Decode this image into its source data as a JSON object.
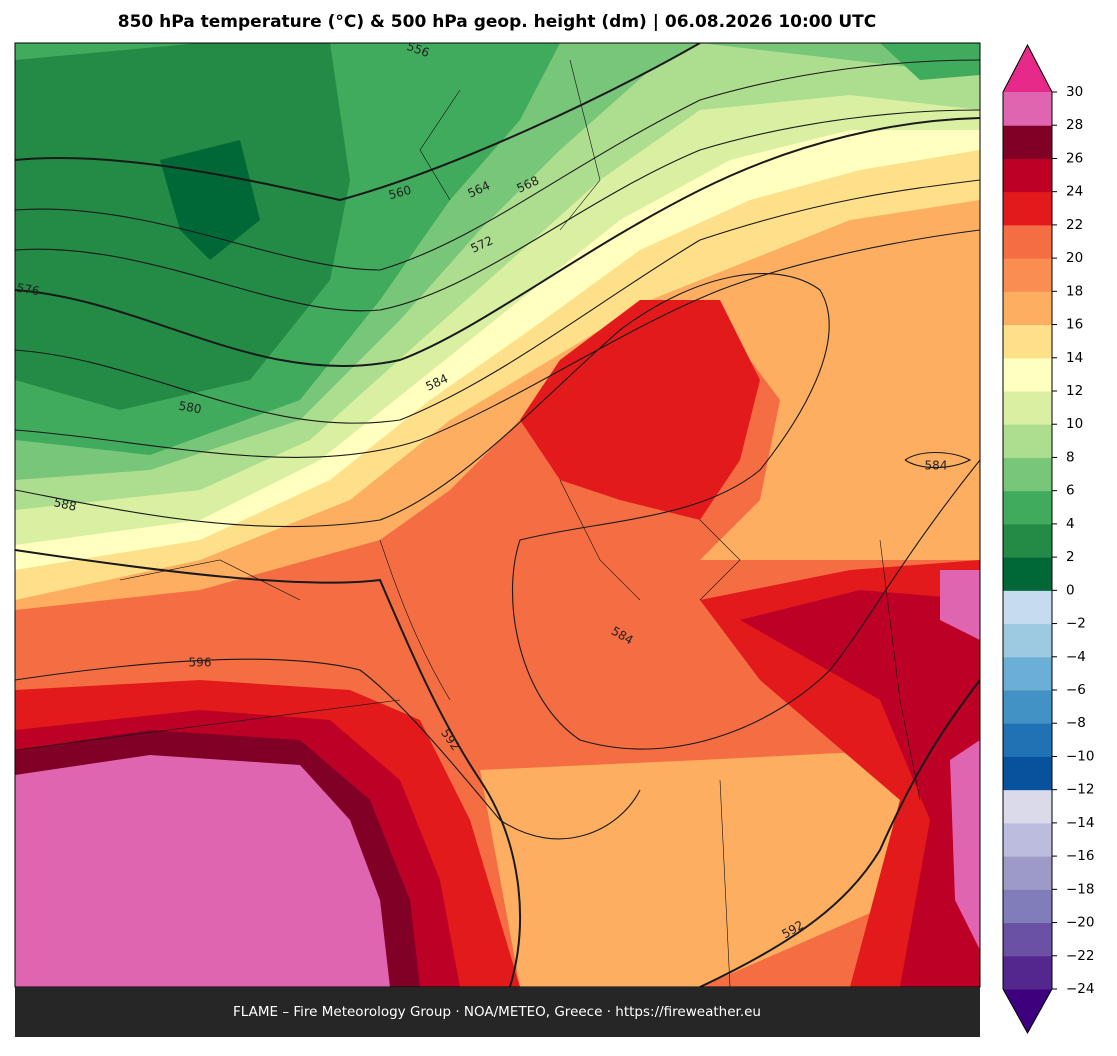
{
  "title": "850 hPa temperature (°C) & 500 hPa geop. height (dm)  |  06.08.2026 10:00 UTC",
  "footer": "FLAME – Fire Meteorology Group · NOA/METEO, Greece · https://fireweather.eu",
  "contour_labels": [
    "556",
    "560",
    "564",
    "568",
    "572",
    "576",
    "580",
    "584",
    "588",
    "596",
    "592",
    "584",
    "592",
    "584"
  ],
  "colorbar": {
    "ticks": [
      {
        "value": -24,
        "label": "−24"
      },
      {
        "value": -22,
        "label": "−22"
      },
      {
        "value": -20,
        "label": "−20"
      },
      {
        "value": -18,
        "label": "−18"
      },
      {
        "value": -16,
        "label": "−16"
      },
      {
        "value": -14,
        "label": "−14"
      },
      {
        "value": -12,
        "label": "−12"
      },
      {
        "value": -10,
        "label": "−10"
      },
      {
        "value": -8,
        "label": "−8"
      },
      {
        "value": -6,
        "label": "−6"
      },
      {
        "value": -4,
        "label": "−4"
      },
      {
        "value": -2,
        "label": "−2"
      },
      0,
      2,
      4,
      6,
      8,
      10,
      12,
      14,
      16,
      18,
      20,
      22,
      24,
      26,
      28,
      30
    ],
    "colors": [
      "#54278f",
      "#6a51a3",
      "#807dba",
      "#9e9ac8",
      "#bcbddc",
      "#dadaeb",
      "#08519c",
      "#2171b5",
      "#4292c6",
      "#6baed6",
      "#9ecae1",
      "#c6dbef",
      "#006837",
      "#238b45",
      "#41ab5d",
      "#78c679",
      "#addd8e",
      "#d9f0a3",
      "#ffffbf",
      "#fee08b",
      "#fdae61",
      "#f98e52",
      "#f46d43",
      "#e31a1c",
      "#bd0026",
      "#800026",
      "#df65b0"
    ],
    "extend_min_color": "#3f007d",
    "extend_max_color": "#e7298a"
  }
}
